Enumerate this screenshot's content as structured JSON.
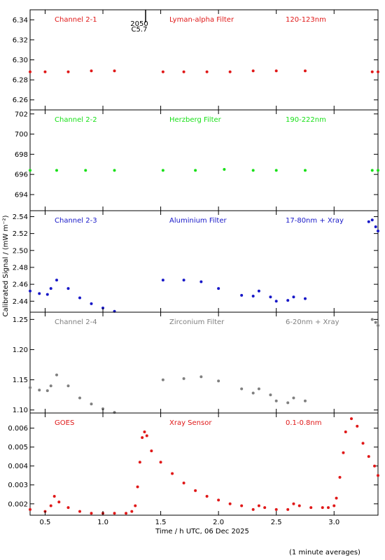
{
  "ylabel": "Calibrated Signal / (mW m⁻²)",
  "xlabel": "Time / h UTC, 06 Dec 2025",
  "footnote": "(1 minute averages)",
  "marker": {
    "line1": "2050",
    "line2": "C5.7"
  },
  "x_ticks": [
    "0.5",
    "1.0",
    "1.5",
    "2.0",
    "2.5",
    "3.0"
  ],
  "chart_data": [
    {
      "type": "scatter",
      "labels": {
        "channel": "Channel 2-1",
        "filter": "Lyman-alpha Filter",
        "band": "120-123nm"
      },
      "color": "#e01818",
      "xlim": [
        0.37,
        3.38
      ],
      "ylim": [
        6.25,
        6.35
      ],
      "yticks": [
        6.26,
        6.28,
        6.3,
        6.32,
        6.34
      ],
      "ytick_labels": [
        "6.26",
        "6.28",
        "6.30",
        "6.32",
        "6.34"
      ],
      "series": [
        {
          "x": [
            0.37,
            0.5,
            0.7,
            0.9,
            1.1
          ],
          "y": [
            6.288,
            6.288,
            6.288,
            6.289,
            6.289
          ]
        },
        {
          "x": [
            1.52,
            1.7,
            1.9,
            2.1,
            2.3,
            2.5,
            2.75
          ],
          "y": [
            6.288,
            6.288,
            6.288,
            6.288,
            6.289,
            6.289,
            6.289
          ]
        },
        {
          "x": [
            3.33,
            3.38
          ],
          "y": [
            6.288,
            6.288
          ]
        }
      ]
    },
    {
      "type": "scatter",
      "labels": {
        "channel": "Channel 2-2",
        "filter": "Herzberg Filter",
        "band": "190-222nm"
      },
      "color": "#18e018",
      "xlim": [
        0.37,
        3.38
      ],
      "ylim": [
        692.4,
        702.4
      ],
      "yticks": [
        694,
        696,
        698,
        700,
        702
      ],
      "ytick_labels": [
        "694",
        "696",
        "698",
        "700",
        "702"
      ],
      "series": [
        {
          "x": [
            0.37,
            0.6,
            0.85,
            1.1
          ],
          "y": [
            696.4,
            696.4,
            696.4,
            696.4
          ]
        },
        {
          "x": [
            1.52,
            1.8,
            2.05,
            2.3,
            2.5,
            2.75
          ],
          "y": [
            696.4,
            696.4,
            696.5,
            696.4,
            696.4,
            696.4
          ]
        },
        {
          "x": [
            3.33,
            3.38
          ],
          "y": [
            696.4,
            696.4
          ]
        }
      ]
    },
    {
      "type": "scatter",
      "labels": {
        "channel": "Channel 2-3",
        "filter": "Aluminium Filter",
        "band": "17-80nm + Xray"
      },
      "color": "#1818c8",
      "xlim": [
        0.37,
        3.38
      ],
      "ylim": [
        2.427,
        2.547
      ],
      "yticks": [
        2.44,
        2.46,
        2.48,
        2.5,
        2.52,
        2.54
      ],
      "ytick_labels": [
        "2.44",
        "2.46",
        "2.48",
        "2.50",
        "2.52",
        "2.54"
      ],
      "series": [
        {
          "x": [
            0.37,
            0.45,
            0.52,
            0.55,
            0.6,
            0.7,
            0.8,
            0.9,
            1.0,
            1.1
          ],
          "y": [
            2.452,
            2.449,
            2.448,
            2.455,
            2.465,
            2.455,
            2.444,
            2.437,
            2.432,
            2.428
          ]
        },
        {
          "x": [
            1.52,
            1.7,
            1.85,
            2.0,
            2.2,
            2.3,
            2.35,
            2.45,
            2.5,
            2.6,
            2.65,
            2.75
          ],
          "y": [
            2.465,
            2.465,
            2.463,
            2.455,
            2.447,
            2.446,
            2.452,
            2.445,
            2.44,
            2.441,
            2.445,
            2.443
          ]
        },
        {
          "x": [
            3.3,
            3.33,
            3.36,
            3.38
          ],
          "y": [
            2.534,
            2.536,
            2.528,
            2.523
          ]
        }
      ]
    },
    {
      "type": "scatter",
      "labels": {
        "channel": "Channel 2-4",
        "filter": "Zirconium Filter",
        "band": "6-20nm + Xray"
      },
      "color": "#808080",
      "xlim": [
        0.37,
        3.38
      ],
      "ylim": [
        1.095,
        1.262
      ],
      "yticks": [
        1.1,
        1.15,
        1.2,
        1.25
      ],
      "ytick_labels": [
        "1.10",
        "1.15",
        "1.20",
        "1.25"
      ],
      "series": [
        {
          "x": [
            0.37,
            0.45,
            0.52,
            0.55,
            0.6,
            0.7,
            0.8,
            0.9,
            1.0,
            1.1
          ],
          "y": [
            1.137,
            1.133,
            1.132,
            1.14,
            1.158,
            1.14,
            1.12,
            1.11,
            1.102,
            1.096
          ]
        },
        {
          "x": [
            1.52,
            1.7,
            1.85,
            2.0,
            2.2,
            2.3,
            2.35,
            2.45,
            2.5,
            2.6,
            2.65,
            2.75
          ],
          "y": [
            1.15,
            1.152,
            1.155,
            1.148,
            1.135,
            1.128,
            1.135,
            1.125,
            1.115,
            1.112,
            1.12,
            1.115
          ]
        },
        {
          "x": [
            3.33,
            3.36,
            3.38
          ],
          "y": [
            1.25,
            1.245,
            1.24
          ]
        }
      ]
    },
    {
      "type": "scatter",
      "labels": {
        "channel": "GOES",
        "filter": "Xray Sensor",
        "band": "0.1-0.8nm"
      },
      "color": "#e01818",
      "xlim": [
        0.37,
        3.38
      ],
      "ylim": [
        0.0014,
        0.0068
      ],
      "yticks": [
        0.002,
        0.003,
        0.004,
        0.005,
        0.006
      ],
      "ytick_labels": [
        "0.002",
        "0.003",
        "0.004",
        "0.005",
        "0.006"
      ],
      "series": [
        {
          "x": [
            0.37,
            0.5,
            0.55,
            0.58,
            0.62,
            0.7,
            0.8,
            0.9,
            1.0,
            1.1,
            1.2,
            1.25,
            1.28,
            1.3,
            1.32,
            1.34,
            1.36,
            1.38,
            1.42,
            1.5,
            1.6,
            1.7,
            1.8,
            1.9,
            2.0,
            2.1,
            2.2,
            2.3,
            2.35,
            2.4,
            2.5,
            2.6,
            2.65,
            2.7,
            2.8,
            2.9,
            2.95,
            3.0,
            3.02,
            3.05,
            3.08,
            3.1,
            3.15,
            3.2,
            3.25,
            3.3,
            3.35,
            3.38
          ],
          "y": [
            0.0017,
            0.0016,
            0.0019,
            0.0024,
            0.0021,
            0.0018,
            0.0016,
            0.0015,
            0.0015,
            0.0015,
            0.0015,
            0.0016,
            0.0019,
            0.0029,
            0.0042,
            0.0055,
            0.0058,
            0.0056,
            0.0048,
            0.0042,
            0.0036,
            0.0031,
            0.0027,
            0.0024,
            0.0022,
            0.002,
            0.0019,
            0.0017,
            0.0019,
            0.0018,
            0.0017,
            0.0017,
            0.002,
            0.0019,
            0.0018,
            0.0018,
            0.0018,
            0.0019,
            0.0023,
            0.0034,
            0.0047,
            0.0058,
            0.0065,
            0.0061,
            0.0052,
            0.0045,
            0.004,
            0.0035
          ]
        }
      ]
    }
  ]
}
